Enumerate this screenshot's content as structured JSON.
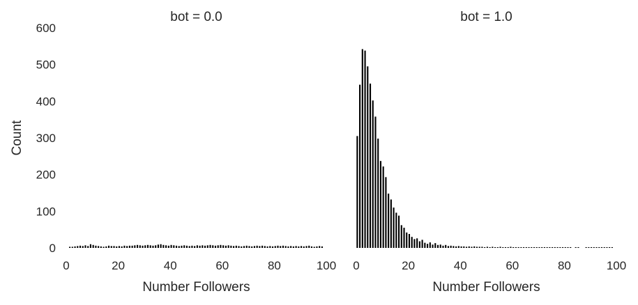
{
  "chart_data": {
    "type": "bar",
    "ylabel": "Count",
    "ylim": [
      0,
      600
    ],
    "yticks": [
      0,
      100,
      200,
      300,
      400,
      500,
      600
    ],
    "xticks": [
      0,
      20,
      40,
      60,
      80,
      100
    ],
    "xlim": [
      0,
      100
    ],
    "grid": false,
    "bar_color": "#000000",
    "panels": [
      {
        "title": "bot = 0.0",
        "xlabel": "Number Followers",
        "bins": [
          {
            "x": 1,
            "y": 3
          },
          {
            "x": 2,
            "y": 3
          },
          {
            "x": 3,
            "y": 4
          },
          {
            "x": 4,
            "y": 5
          },
          {
            "x": 5,
            "y": 6
          },
          {
            "x": 6,
            "y": 5
          },
          {
            "x": 7,
            "y": 7
          },
          {
            "x": 8,
            "y": 5
          },
          {
            "x": 9,
            "y": 10
          },
          {
            "x": 10,
            "y": 8
          },
          {
            "x": 11,
            "y": 6
          },
          {
            "x": 12,
            "y": 5
          },
          {
            "x": 13,
            "y": 4
          },
          {
            "x": 14,
            "y": 3
          },
          {
            "x": 15,
            "y": 4
          },
          {
            "x": 16,
            "y": 6
          },
          {
            "x": 17,
            "y": 5
          },
          {
            "x": 18,
            "y": 5
          },
          {
            "x": 19,
            "y": 4
          },
          {
            "x": 20,
            "y": 5
          },
          {
            "x": 21,
            "y": 4
          },
          {
            "x": 22,
            "y": 6
          },
          {
            "x": 23,
            "y": 5
          },
          {
            "x": 24,
            "y": 6
          },
          {
            "x": 25,
            "y": 6
          },
          {
            "x": 26,
            "y": 7
          },
          {
            "x": 27,
            "y": 8
          },
          {
            "x": 28,
            "y": 7
          },
          {
            "x": 29,
            "y": 6
          },
          {
            "x": 30,
            "y": 7
          },
          {
            "x": 31,
            "y": 8
          },
          {
            "x": 32,
            "y": 7
          },
          {
            "x": 33,
            "y": 6
          },
          {
            "x": 34,
            "y": 7
          },
          {
            "x": 35,
            "y": 9
          },
          {
            "x": 36,
            "y": 10
          },
          {
            "x": 37,
            "y": 8
          },
          {
            "x": 38,
            "y": 7
          },
          {
            "x": 39,
            "y": 6
          },
          {
            "x": 40,
            "y": 8
          },
          {
            "x": 41,
            "y": 7
          },
          {
            "x": 42,
            "y": 6
          },
          {
            "x": 43,
            "y": 5
          },
          {
            "x": 44,
            "y": 6
          },
          {
            "x": 45,
            "y": 7
          },
          {
            "x": 46,
            "y": 6
          },
          {
            "x": 47,
            "y": 5
          },
          {
            "x": 48,
            "y": 6
          },
          {
            "x": 49,
            "y": 5
          },
          {
            "x": 50,
            "y": 7
          },
          {
            "x": 51,
            "y": 6
          },
          {
            "x": 52,
            "y": 7
          },
          {
            "x": 53,
            "y": 6
          },
          {
            "x": 54,
            "y": 7
          },
          {
            "x": 55,
            "y": 8
          },
          {
            "x": 56,
            "y": 7
          },
          {
            "x": 57,
            "y": 6
          },
          {
            "x": 58,
            "y": 7
          },
          {
            "x": 59,
            "y": 8
          },
          {
            "x": 60,
            "y": 7
          },
          {
            "x": 61,
            "y": 6
          },
          {
            "x": 62,
            "y": 7
          },
          {
            "x": 63,
            "y": 6
          },
          {
            "x": 64,
            "y": 5
          },
          {
            "x": 65,
            "y": 6
          },
          {
            "x": 66,
            "y": 5
          },
          {
            "x": 67,
            "y": 4
          },
          {
            "x": 68,
            "y": 5
          },
          {
            "x": 69,
            "y": 6
          },
          {
            "x": 70,
            "y": 5
          },
          {
            "x": 71,
            "y": 4
          },
          {
            "x": 72,
            "y": 5
          },
          {
            "x": 73,
            "y": 6
          },
          {
            "x": 74,
            "y": 5
          },
          {
            "x": 75,
            "y": 6
          },
          {
            "x": 76,
            "y": 5
          },
          {
            "x": 77,
            "y": 4
          },
          {
            "x": 78,
            "y": 5
          },
          {
            "x": 79,
            "y": 4
          },
          {
            "x": 80,
            "y": 5
          },
          {
            "x": 81,
            "y": 6
          },
          {
            "x": 82,
            "y": 5
          },
          {
            "x": 83,
            "y": 6
          },
          {
            "x": 84,
            "y": 5
          },
          {
            "x": 85,
            "y": 4
          },
          {
            "x": 86,
            "y": 5
          },
          {
            "x": 87,
            "y": 4
          },
          {
            "x": 88,
            "y": 5
          },
          {
            "x": 89,
            "y": 4
          },
          {
            "x": 90,
            "y": 5
          },
          {
            "x": 91,
            "y": 4
          },
          {
            "x": 92,
            "y": 5
          },
          {
            "x": 93,
            "y": 6
          },
          {
            "x": 94,
            "y": 4
          },
          {
            "x": 95,
            "y": 3
          },
          {
            "x": 96,
            "y": 4
          },
          {
            "x": 97,
            "y": 5
          },
          {
            "x": 98,
            "y": 4
          }
        ]
      },
      {
        "title": "bot = 1.0",
        "xlabel": "Number Followers",
        "bins": [
          {
            "x": 0,
            "y": 305
          },
          {
            "x": 1,
            "y": 445
          },
          {
            "x": 2,
            "y": 542
          },
          {
            "x": 3,
            "y": 538
          },
          {
            "x": 4,
            "y": 495
          },
          {
            "x": 5,
            "y": 448
          },
          {
            "x": 6,
            "y": 402
          },
          {
            "x": 7,
            "y": 358
          },
          {
            "x": 8,
            "y": 298
          },
          {
            "x": 9,
            "y": 237
          },
          {
            "x": 10,
            "y": 222
          },
          {
            "x": 11,
            "y": 193
          },
          {
            "x": 12,
            "y": 148
          },
          {
            "x": 13,
            "y": 132
          },
          {
            "x": 14,
            "y": 110
          },
          {
            "x": 15,
            "y": 96
          },
          {
            "x": 16,
            "y": 88
          },
          {
            "x": 17,
            "y": 62
          },
          {
            "x": 18,
            "y": 55
          },
          {
            "x": 19,
            "y": 42
          },
          {
            "x": 20,
            "y": 38
          },
          {
            "x": 21,
            "y": 30
          },
          {
            "x": 22,
            "y": 24
          },
          {
            "x": 23,
            "y": 26
          },
          {
            "x": 24,
            "y": 18
          },
          {
            "x": 25,
            "y": 22
          },
          {
            "x": 26,
            "y": 14
          },
          {
            "x": 27,
            "y": 11
          },
          {
            "x": 28,
            "y": 15
          },
          {
            "x": 29,
            "y": 9
          },
          {
            "x": 30,
            "y": 13
          },
          {
            "x": 31,
            "y": 8
          },
          {
            "x": 32,
            "y": 9
          },
          {
            "x": 33,
            "y": 6
          },
          {
            "x": 34,
            "y": 8
          },
          {
            "x": 35,
            "y": 5
          },
          {
            "x": 36,
            "y": 6
          },
          {
            "x": 37,
            "y": 5
          },
          {
            "x": 38,
            "y": 4
          },
          {
            "x": 39,
            "y": 5
          },
          {
            "x": 40,
            "y": 4
          },
          {
            "x": 41,
            "y": 4
          },
          {
            "x": 42,
            "y": 3
          },
          {
            "x": 43,
            "y": 4
          },
          {
            "x": 44,
            "y": 3
          },
          {
            "x": 45,
            "y": 4
          },
          {
            "x": 46,
            "y": 3
          },
          {
            "x": 47,
            "y": 3
          },
          {
            "x": 48,
            "y": 3
          },
          {
            "x": 49,
            "y": 2
          },
          {
            "x": 50,
            "y": 3
          },
          {
            "x": 51,
            "y": 2
          },
          {
            "x": 52,
            "y": 3
          },
          {
            "x": 53,
            "y": 2
          },
          {
            "x": 54,
            "y": 2
          },
          {
            "x": 55,
            "y": 3
          },
          {
            "x": 56,
            "y": 2
          },
          {
            "x": 57,
            "y": 2
          },
          {
            "x": 58,
            "y": 2
          },
          {
            "x": 59,
            "y": 3
          },
          {
            "x": 60,
            "y": 2
          },
          {
            "x": 61,
            "y": 2
          },
          {
            "x": 62,
            "y": 2
          },
          {
            "x": 63,
            "y": 2
          },
          {
            "x": 64,
            "y": 2
          },
          {
            "x": 65,
            "y": 2
          },
          {
            "x": 66,
            "y": 2
          },
          {
            "x": 67,
            "y": 2
          },
          {
            "x": 68,
            "y": 2
          },
          {
            "x": 69,
            "y": 2
          },
          {
            "x": 70,
            "y": 2
          },
          {
            "x": 71,
            "y": 2
          },
          {
            "x": 72,
            "y": 2
          },
          {
            "x": 73,
            "y": 2
          },
          {
            "x": 74,
            "y": 2
          },
          {
            "x": 75,
            "y": 2
          },
          {
            "x": 76,
            "y": 2
          },
          {
            "x": 77,
            "y": 2
          },
          {
            "x": 78,
            "y": 2
          },
          {
            "x": 79,
            "y": 2
          },
          {
            "x": 80,
            "y": 2
          },
          {
            "x": 81,
            "y": 2
          },
          {
            "x": 82,
            "y": 2
          },
          {
            "x": 84,
            "y": 2
          },
          {
            "x": 85,
            "y": 2
          },
          {
            "x": 88,
            "y": 2
          },
          {
            "x": 89,
            "y": 2
          },
          {
            "x": 90,
            "y": 2
          },
          {
            "x": 91,
            "y": 2
          },
          {
            "x": 92,
            "y": 2
          },
          {
            "x": 93,
            "y": 2
          },
          {
            "x": 94,
            "y": 2
          },
          {
            "x": 95,
            "y": 2
          },
          {
            "x": 96,
            "y": 2
          },
          {
            "x": 97,
            "y": 2
          },
          {
            "x": 98,
            "y": 2
          }
        ]
      }
    ]
  }
}
